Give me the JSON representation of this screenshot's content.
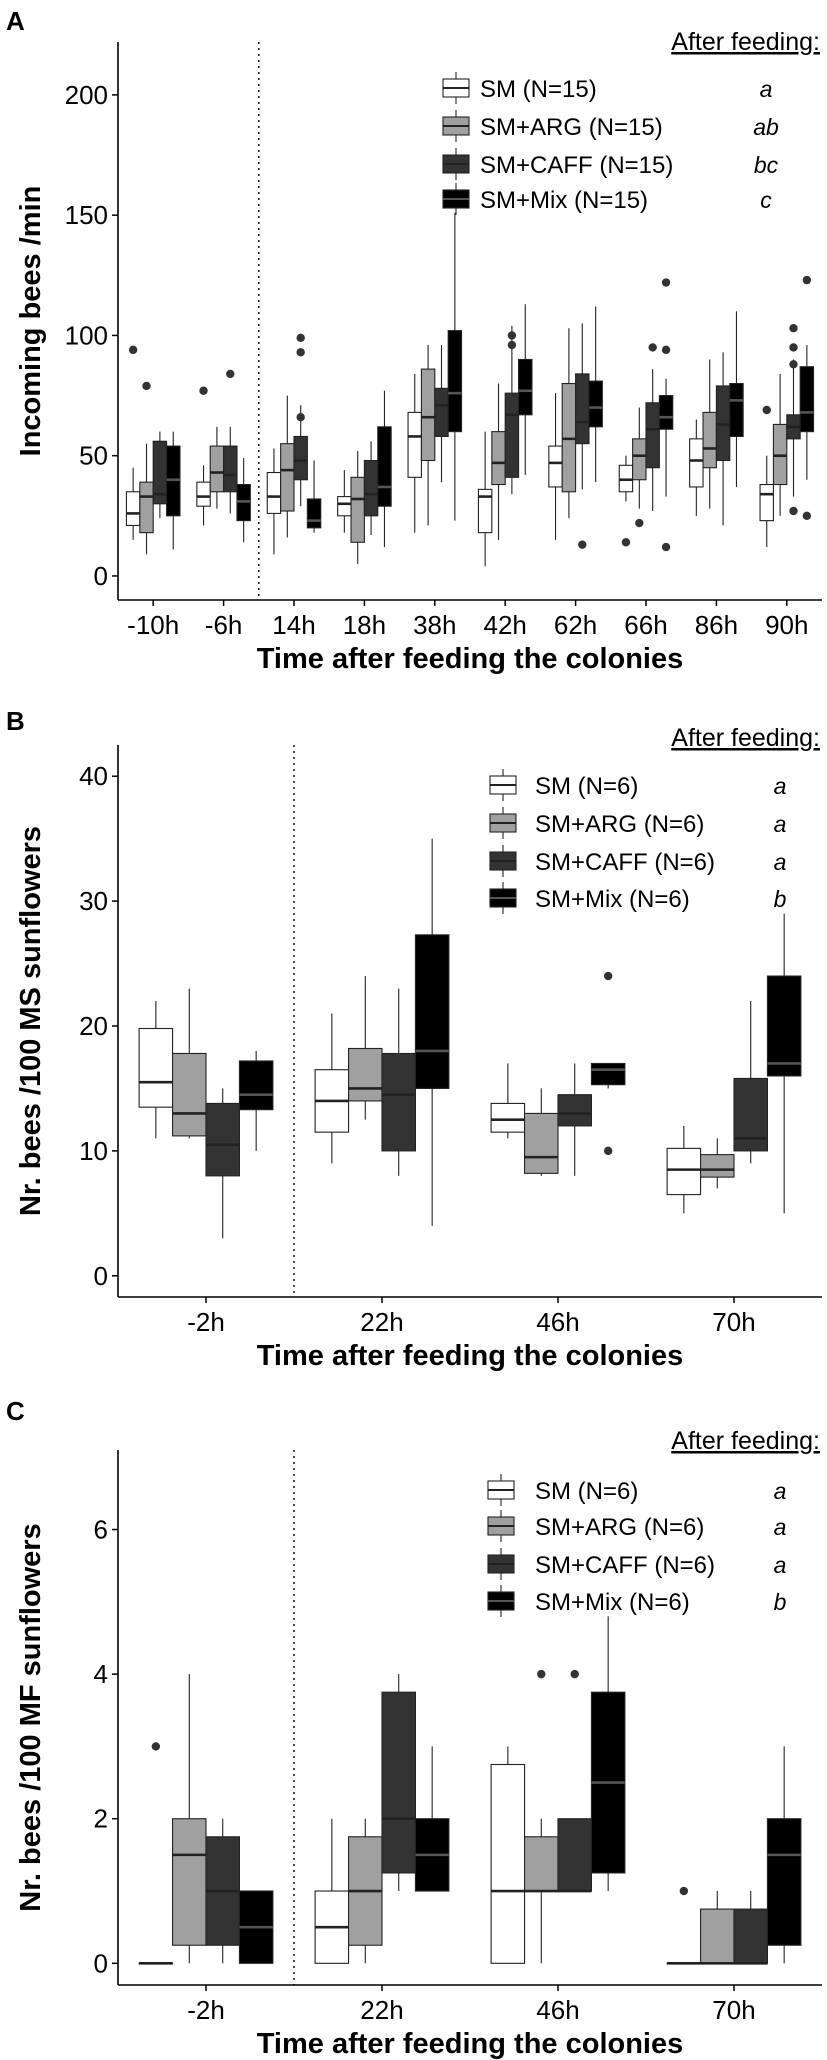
{
  "chart_data": [
    {
      "type": "boxplot",
      "panel_label": "A",
      "title": "",
      "xlabel": "Time after feeding the colonies",
      "ylabel": "Incoming bees /min",
      "ylim": [
        -10,
        222
      ],
      "yticks": [
        0,
        50,
        100,
        150,
        200
      ],
      "categories": [
        "-10h",
        "-6h",
        "14h",
        "18h",
        "38h",
        "42h",
        "62h",
        "66h",
        "86h",
        "90h"
      ],
      "feeding_divider_after_index": 1,
      "legend_title": "After feeding:",
      "series": [
        {
          "name": "SM (N=15)",
          "letter": "a",
          "color": "#ffffff",
          "boxes": [
            {
              "lw": 15,
              "q1": 21,
              "med": 26,
              "q3": 35,
              "uw": 45,
              "out": [
                94
              ]
            },
            {
              "lw": 21,
              "q1": 29,
              "med": 33,
              "q3": 39,
              "uw": 46,
              "out": [
                77
              ]
            },
            {
              "lw": 9,
              "q1": 26,
              "med": 33,
              "q3": 43,
              "uw": 53,
              "out": []
            },
            {
              "lw": 18,
              "q1": 25,
              "med": 30,
              "q3": 33,
              "uw": 44,
              "out": []
            },
            {
              "lw": 18,
              "q1": 41,
              "med": 58,
              "q3": 68,
              "uw": 84,
              "out": []
            },
            {
              "lw": 4,
              "q1": 18,
              "med": 33,
              "q3": 36,
              "uw": 60,
              "out": []
            },
            {
              "lw": 15,
              "q1": 37,
              "med": 47,
              "q3": 54,
              "uw": 76,
              "out": []
            },
            {
              "lw": 31,
              "q1": 35,
              "med": 40,
              "q3": 46,
              "uw": 50,
              "out": [
                14
              ]
            },
            {
              "lw": 25,
              "q1": 37,
              "med": 48,
              "q3": 57,
              "uw": 65,
              "out": []
            },
            {
              "lw": 12,
              "q1": 23,
              "med": 34,
              "q3": 38,
              "uw": 50,
              "out": [
                69
              ]
            }
          ]
        },
        {
          "name": "SM+ARG (N=15)",
          "letter": "ab",
          "color": "#a0a0a0",
          "boxes": [
            {
              "lw": 9,
              "q1": 18,
              "med": 33,
              "q3": 39,
              "uw": 55,
              "out": [
                79
              ]
            },
            {
              "lw": 28,
              "q1": 35,
              "med": 43,
              "q3": 54,
              "uw": 62,
              "out": []
            },
            {
              "lw": 16,
              "q1": 27,
              "med": 44,
              "q3": 55,
              "uw": 75,
              "out": []
            },
            {
              "lw": 5,
              "q1": 14,
              "med": 32,
              "q3": 41,
              "uw": 52,
              "out": []
            },
            {
              "lw": 21,
              "q1": 48,
              "med": 66,
              "q3": 86,
              "uw": 96,
              "out": []
            },
            {
              "lw": 15,
              "q1": 38,
              "med": 47,
              "q3": 60,
              "uw": 80,
              "out": []
            },
            {
              "lw": 24,
              "q1": 35,
              "med": 57,
              "q3": 80,
              "uw": 103,
              "out": []
            },
            {
              "lw": 28,
              "q1": 40,
              "med": 50,
              "q3": 57,
              "uw": 70,
              "out": [
                22
              ]
            },
            {
              "lw": 28,
              "q1": 45,
              "med": 53,
              "q3": 68,
              "uw": 90,
              "out": []
            },
            {
              "lw": 25,
              "q1": 38,
              "med": 50,
              "q3": 63,
              "uw": 84,
              "out": []
            }
          ]
        },
        {
          "name": "SM+CAFF (N=15)",
          "letter": "bc",
          "color": "#333333",
          "boxes": [
            {
              "lw": 24,
              "q1": 30,
              "med": 34,
              "q3": 56,
              "uw": 60,
              "out": []
            },
            {
              "lw": 26,
              "q1": 35,
              "med": 42,
              "q3": 54,
              "uw": 62,
              "out": [
                84
              ]
            },
            {
              "lw": 29,
              "q1": 40,
              "med": 48,
              "q3": 58,
              "uw": 71,
              "out": [
                99,
                93,
                66
              ]
            },
            {
              "lw": 17,
              "q1": 25,
              "med": 34,
              "q3": 48,
              "uw": 56,
              "out": []
            },
            {
              "lw": 39,
              "q1": 58,
              "med": 71,
              "q3": 78,
              "uw": 96,
              "out": []
            },
            {
              "lw": 34,
              "q1": 41,
              "med": 67,
              "q3": 76,
              "uw": 104,
              "out": [
                100,
                96
              ]
            },
            {
              "lw": 36,
              "q1": 55,
              "med": 64,
              "q3": 84,
              "uw": 105,
              "out": [
                13
              ]
            },
            {
              "lw": 27,
              "q1": 45,
              "med": 61,
              "q3": 72,
              "uw": 86,
              "out": [
                95
              ]
            },
            {
              "lw": 21,
              "q1": 48,
              "med": 63,
              "q3": 79,
              "uw": 93,
              "out": []
            },
            {
              "lw": 33,
              "q1": 57,
              "med": 62,
              "q3": 67,
              "uw": 90,
              "out": [
                103,
                95,
                88,
                27
              ]
            }
          ]
        },
        {
          "name": "SM+Mix (N=15)",
          "letter": "c",
          "color": "#000000",
          "boxes": [
            {
              "lw": 11,
              "q1": 25,
              "med": 40,
              "q3": 54,
              "uw": 60,
              "out": []
            },
            {
              "lw": 14,
              "q1": 23,
              "med": 31,
              "q3": 38,
              "uw": 49,
              "out": []
            },
            {
              "lw": 18,
              "q1": 20,
              "med": 23,
              "q3": 32,
              "uw": 48,
              "out": []
            },
            {
              "lw": 12,
              "q1": 29,
              "med": 37,
              "q3": 62,
              "uw": 77,
              "out": []
            },
            {
              "lw": 23,
              "q1": 60,
              "med": 76,
              "q3": 102,
              "uw": 151,
              "out": []
            },
            {
              "lw": 42,
              "q1": 67,
              "med": 77,
              "q3": 90,
              "uw": 113,
              "out": []
            },
            {
              "lw": 39,
              "q1": 62,
              "med": 70,
              "q3": 81,
              "uw": 112,
              "out": []
            },
            {
              "lw": 33,
              "q1": 61,
              "med": 66,
              "q3": 75,
              "uw": 82,
              "out": [
                122,
                94,
                12
              ]
            },
            {
              "lw": 37,
              "q1": 58,
              "med": 73,
              "q3": 80,
              "uw": 110,
              "out": []
            },
            {
              "lw": 40,
              "q1": 60,
              "med": 68,
              "q3": 87,
              "uw": 96,
              "out": [
                123,
                25
              ]
            }
          ]
        }
      ]
    },
    {
      "type": "boxplot",
      "panel_label": "B",
      "title": "",
      "xlabel": "Time after feeding the colonies",
      "ylabel": "Nr. bees /100 MS sunflowers",
      "ylim": [
        -1.7,
        42.5
      ],
      "yticks": [
        0,
        10,
        20,
        30,
        40
      ],
      "categories": [
        "-2h",
        "22h",
        "46h",
        "70h"
      ],
      "feeding_divider_after_index": 0,
      "legend_title": "After feeding:",
      "series": [
        {
          "name": "SM (N=6)",
          "letter": "a",
          "color": "#ffffff",
          "boxes": [
            {
              "lw": 11,
              "q1": 13.5,
              "med": 15.5,
              "q3": 19.8,
              "uw": 22,
              "out": []
            },
            {
              "lw": 9,
              "q1": 11.5,
              "med": 14,
              "q3": 16.5,
              "uw": 21,
              "out": []
            },
            {
              "lw": 11,
              "q1": 11.5,
              "med": 12.5,
              "q3": 13.8,
              "uw": 17,
              "out": []
            },
            {
              "lw": 5,
              "q1": 6.5,
              "med": 8.5,
              "q3": 10.2,
              "uw": 12,
              "out": []
            }
          ]
        },
        {
          "name": "SM+ARG (N=6)",
          "letter": "a",
          "color": "#a0a0a0",
          "boxes": [
            {
              "lw": 11,
              "q1": 11.2,
              "med": 13,
              "q3": 17.8,
              "uw": 23,
              "out": []
            },
            {
              "lw": 12.5,
              "q1": 14,
              "med": 15,
              "q3": 18.2,
              "uw": 24,
              "out": []
            },
            {
              "lw": 8,
              "q1": 8.2,
              "med": 9.5,
              "q3": 13,
              "uw": 15,
              "out": []
            },
            {
              "lw": 7,
              "q1": 7.9,
              "med": 8.5,
              "q3": 9.7,
              "uw": 11,
              "out": []
            }
          ]
        },
        {
          "name": "SM+CAFF (N=6)",
          "letter": "a",
          "color": "#333333",
          "boxes": [
            {
              "lw": 3,
              "q1": 8,
              "med": 10.5,
              "q3": 13.8,
              "uw": 15,
              "out": []
            },
            {
              "lw": 8,
              "q1": 10,
              "med": 14.5,
              "q3": 17.8,
              "uw": 23,
              "out": []
            },
            {
              "lw": 8,
              "q1": 12,
              "med": 13,
              "q3": 14.5,
              "uw": 17,
              "out": []
            },
            {
              "lw": 9,
              "q1": 10,
              "med": 11,
              "q3": 15.8,
              "uw": 22,
              "out": []
            }
          ]
        },
        {
          "name": "SM+Mix (N=6)",
          "letter": "b",
          "color": "#000000",
          "boxes": [
            {
              "lw": 10,
              "q1": 13.3,
              "med": 14.5,
              "q3": 17.2,
              "uw": 18,
              "out": []
            },
            {
              "lw": 4,
              "q1": 15,
              "med": 18,
              "q3": 27.3,
              "uw": 35,
              "out": []
            },
            {
              "lw": 15,
              "q1": 15.3,
              "med": 16.5,
              "q3": 17,
              "uw": 17,
              "out": [
                24,
                10
              ]
            },
            {
              "lw": 5,
              "q1": 16,
              "med": 17,
              "q3": 24,
              "uw": 29,
              "out": []
            }
          ]
        }
      ]
    },
    {
      "type": "boxplot",
      "panel_label": "C",
      "title": "",
      "xlabel": "Time after feeding the colonies",
      "ylabel": "Nr. bees /100 MF sunflowers",
      "ylim": [
        -0.3,
        7.1
      ],
      "yticks": [
        0,
        2,
        4,
        6
      ],
      "categories": [
        "-2h",
        "22h",
        "46h",
        "70h"
      ],
      "feeding_divider_after_index": 0,
      "legend_title": "After feeding:",
      "series": [
        {
          "name": "SM (N=6)",
          "letter": "a",
          "color": "#ffffff",
          "boxes": [
            {
              "lw": 0,
              "q1": 0,
              "med": 0,
              "q3": 0,
              "uw": 0,
              "out": [
                3
              ]
            },
            {
              "lw": 0,
              "q1": 0,
              "med": 0.5,
              "q3": 1,
              "uw": 2,
              "out": []
            },
            {
              "lw": 0,
              "q1": 0,
              "med": 1,
              "q3": 2.75,
              "uw": 3,
              "out": []
            },
            {
              "lw": 0,
              "q1": 0,
              "med": 0,
              "q3": 0,
              "uw": 0,
              "out": [
                1
              ]
            }
          ]
        },
        {
          "name": "SM+ARG (N=6)",
          "letter": "a",
          "color": "#a0a0a0",
          "boxes": [
            {
              "lw": 0,
              "q1": 0.25,
              "med": 1.5,
              "q3": 2,
              "uw": 4,
              "out": []
            },
            {
              "lw": 0,
              "q1": 0.25,
              "med": 1,
              "q3": 1.75,
              "uw": 2,
              "out": []
            },
            {
              "lw": 0,
              "q1": 1,
              "med": 1,
              "q3": 1.75,
              "uw": 2,
              "out": [
                4
              ]
            },
            {
              "lw": 0,
              "q1": 0,
              "med": 0,
              "q3": 0.75,
              "uw": 1,
              "out": []
            }
          ]
        },
        {
          "name": "SM+CAFF (N=6)",
          "letter": "a",
          "color": "#333333",
          "boxes": [
            {
              "lw": 0,
              "q1": 0.25,
              "med": 1,
              "q3": 1.75,
              "uw": 2,
              "out": []
            },
            {
              "lw": 1,
              "q1": 1.25,
              "med": 2,
              "q3": 3.75,
              "uw": 4,
              "out": []
            },
            {
              "lw": 1,
              "q1": 1,
              "med": 1,
              "q3": 2,
              "uw": 2,
              "out": [
                4
              ]
            },
            {
              "lw": 0,
              "q1": 0,
              "med": 0,
              "q3": 0.75,
              "uw": 1,
              "out": []
            }
          ]
        },
        {
          "name": "SM+Mix (N=6)",
          "letter": "b",
          "color": "#000000",
          "boxes": [
            {
              "lw": 0,
              "q1": 0,
              "med": 0.5,
              "q3": 1,
              "uw": 1,
              "out": []
            },
            {
              "lw": 1,
              "q1": 1,
              "med": 1.5,
              "q3": 2,
              "uw": 3,
              "out": []
            },
            {
              "lw": 1,
              "q1": 1.25,
              "med": 2.5,
              "q3": 3.75,
              "uw": 4.8,
              "out": []
            },
            {
              "lw": 0,
              "q1": 0.25,
              "med": 1.5,
              "q3": 2,
              "uw": 3,
              "out": []
            }
          ]
        }
      ]
    }
  ]
}
